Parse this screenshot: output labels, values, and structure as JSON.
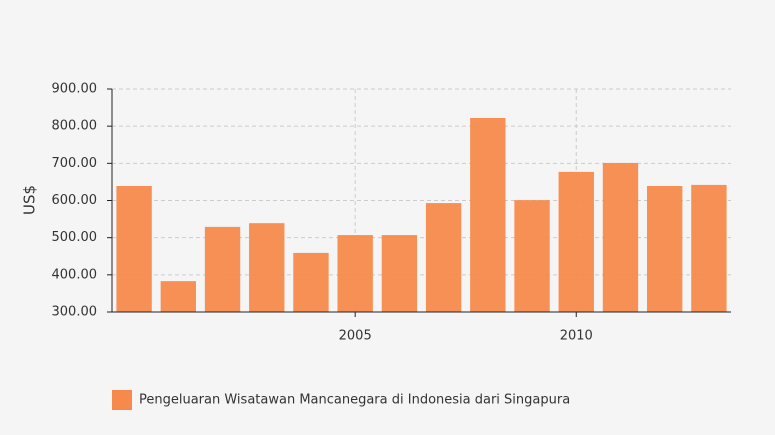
{
  "chart_data": {
    "type": "bar",
    "x": [
      2000,
      2001,
      2002,
      2003,
      2004,
      2005,
      2006,
      2007,
      2008,
      2009,
      2010,
      2011,
      2012,
      2013
    ],
    "series": [
      {
        "name": "Pengeluaran Wisatawan Mancanegara di Indonesia dari Singapura",
        "color": "#f58a4c",
        "values": [
          639,
          383,
          529,
          539,
          459,
          507,
          507,
          593,
          822,
          601,
          677,
          701,
          639,
          642
        ]
      }
    ],
    "ylabel": "US$",
    "xlim": [
      1999.5,
      2013.5
    ],
    "xticks": [
      2005,
      2010
    ],
    "ylim": [
      300,
      900
    ],
    "yticks": [
      {
        "value": 300,
        "label": "300.00"
      },
      {
        "value": 400,
        "label": "400.00"
      },
      {
        "value": 500,
        "label": "500.00"
      },
      {
        "value": 600,
        "label": "600.00"
      },
      {
        "value": 700,
        "label": "700.00"
      },
      {
        "value": 800,
        "label": "800.00"
      },
      {
        "value": 900,
        "label": "900.00"
      }
    ],
    "grid": true,
    "legend": "bottom"
  }
}
